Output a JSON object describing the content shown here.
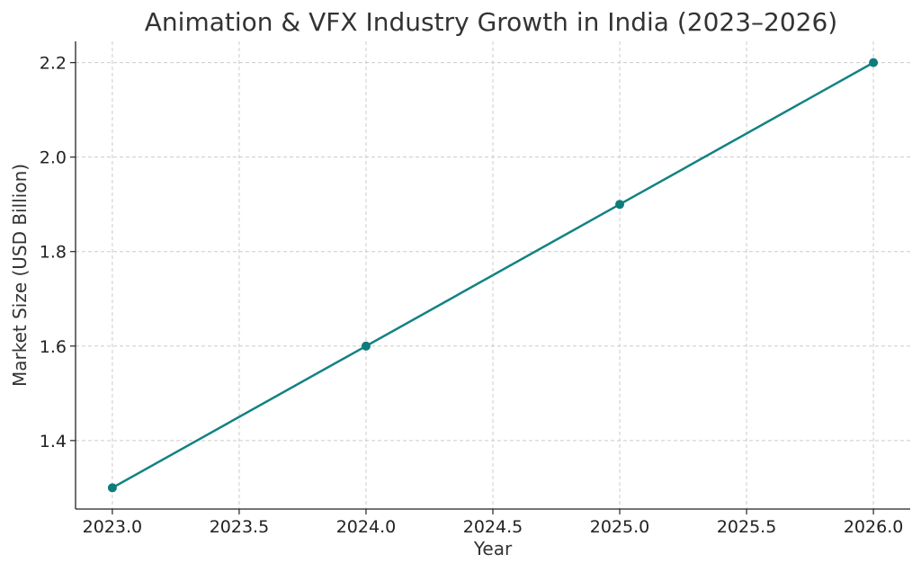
{
  "chart_data": {
    "type": "line",
    "title": "Animation & VFX Industry Growth in India (2023–2026)",
    "xlabel": "Year",
    "ylabel": "Market Size (USD Billion)",
    "x": [
      2023,
      2024,
      2025,
      2026
    ],
    "series": [
      {
        "values": [
          1.3,
          1.6,
          1.9,
          2.2
        ]
      }
    ],
    "xlim": [
      2022.855,
      2026.145
    ],
    "ylim": [
      1.255,
      2.245
    ],
    "xticks": [
      2023.0,
      2023.5,
      2024.0,
      2024.5,
      2025.0,
      2025.5,
      2026.0
    ],
    "xtick_labels": [
      "2023.0",
      "2023.5",
      "2024.0",
      "2024.5",
      "2025.0",
      "2025.5",
      "2026.0"
    ],
    "yticks": [
      1.4,
      1.6,
      1.8,
      2.0,
      2.2
    ],
    "ytick_labels": [
      "1.4",
      "1.6",
      "1.8",
      "2.0",
      "2.2"
    ],
    "grid": true,
    "colors": {
      "line": "#138282",
      "marker": "#0e7c7b"
    }
  }
}
